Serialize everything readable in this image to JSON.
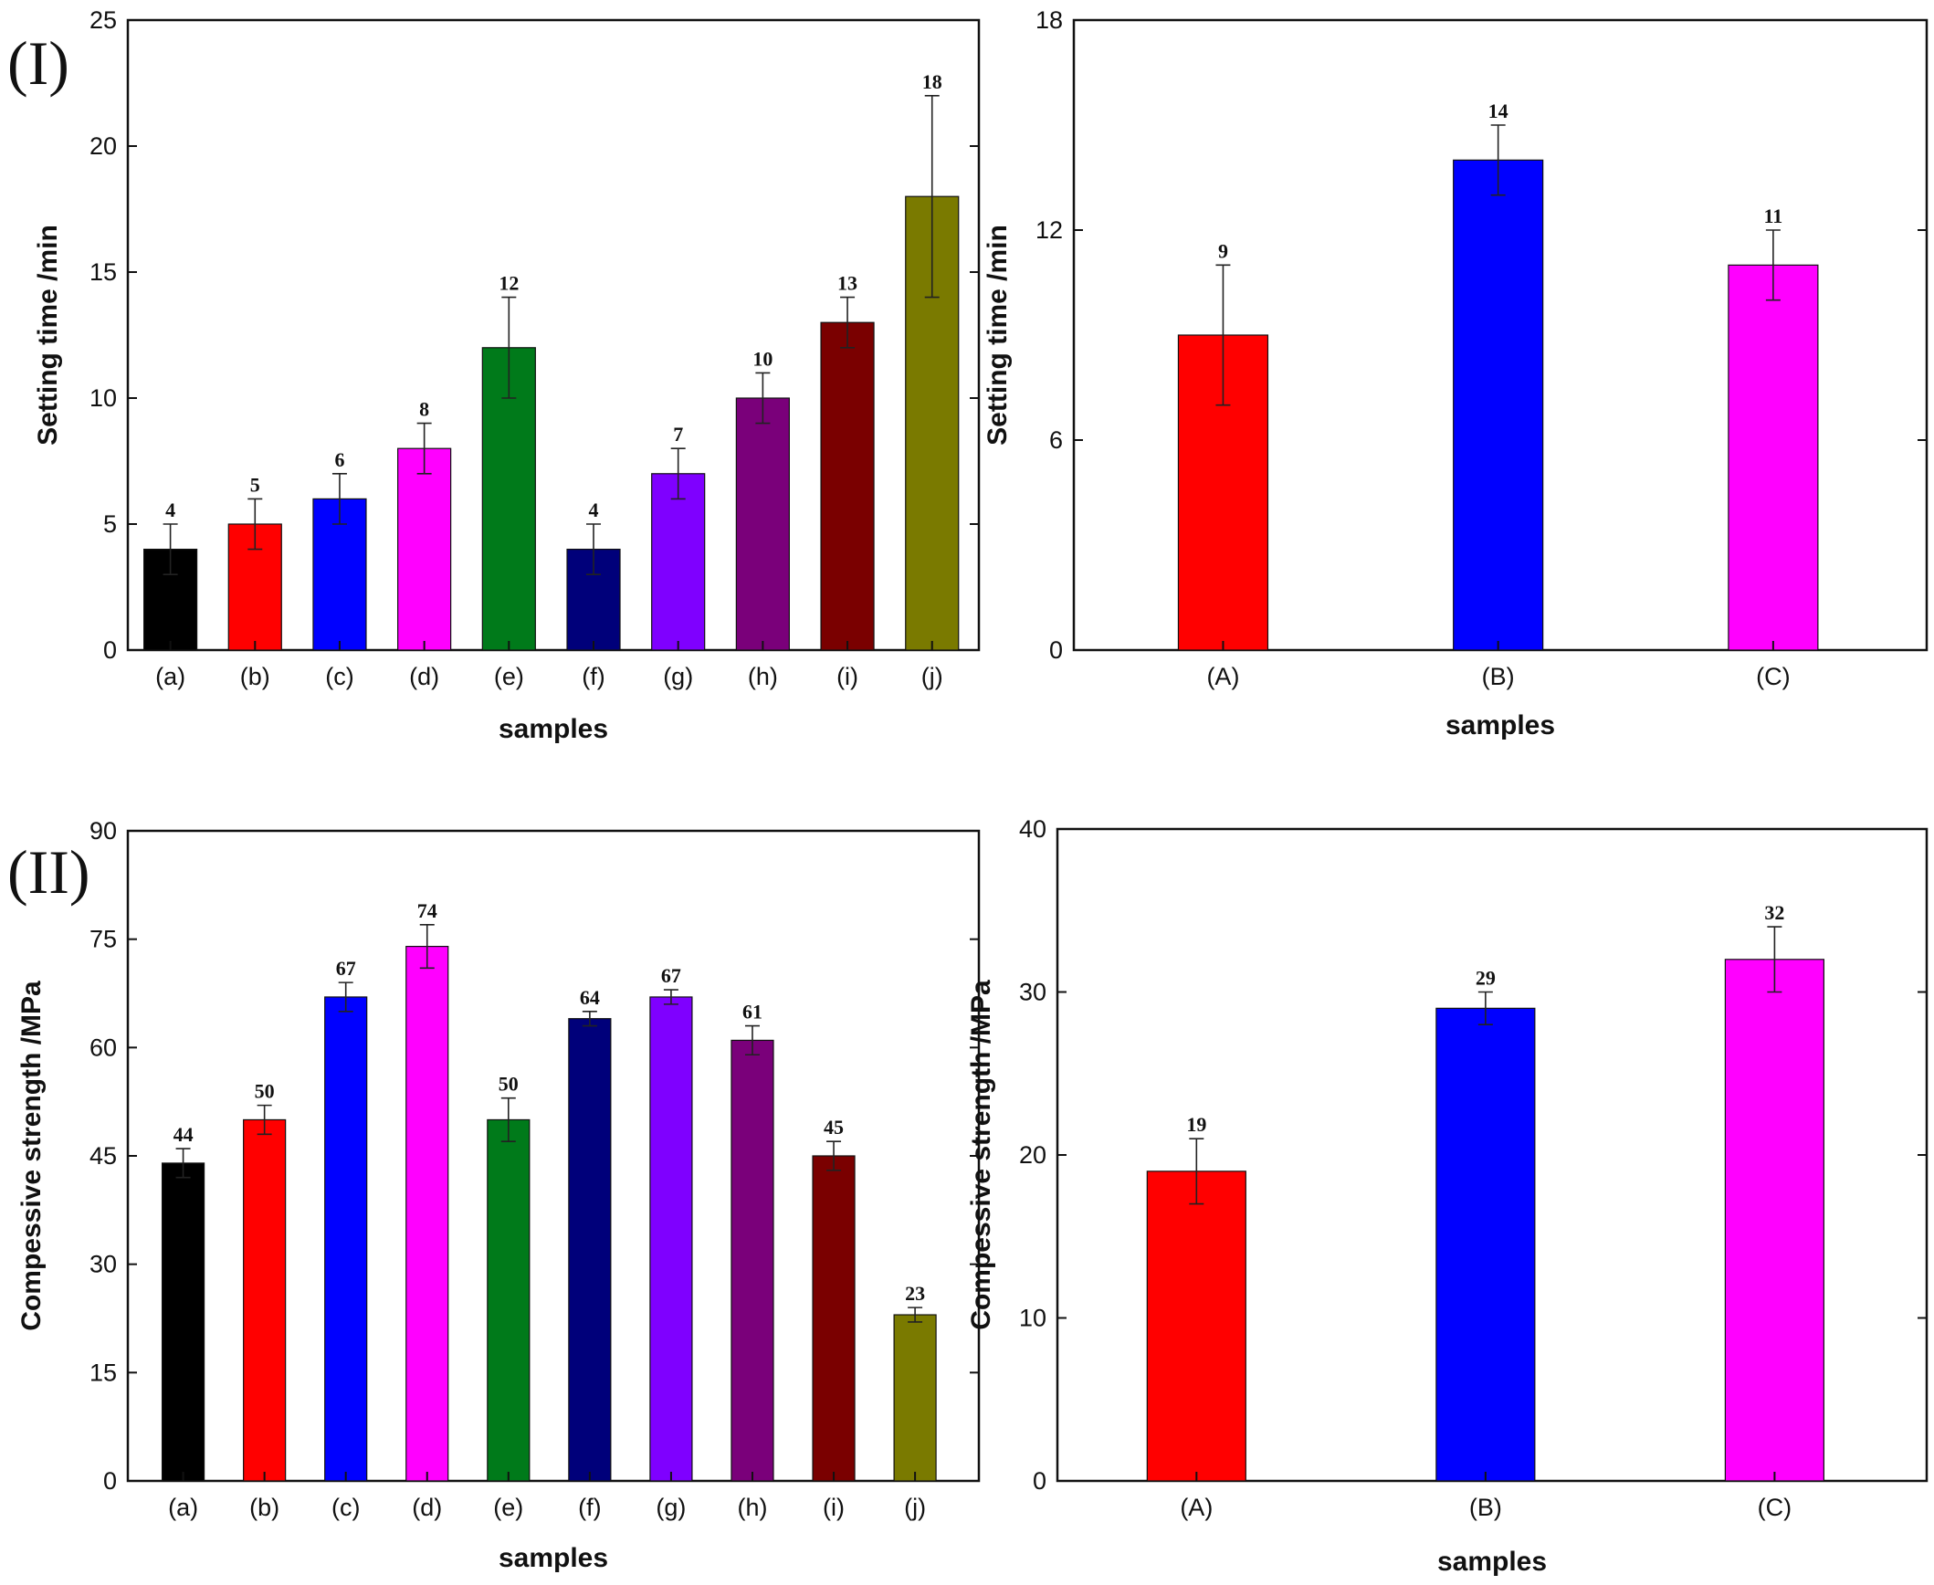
{
  "panel_labels": [
    "(I)",
    "(II)"
  ],
  "bar_colors": [
    "#000000",
    "#ff0000",
    "#0000ff",
    "#ff00ff",
    "#007a1a",
    "#00007a",
    "#7f00ff",
    "#7a007a",
    "#7a0000",
    "#7a7a00"
  ],
  "chart_data": [
    {
      "type": "bar",
      "title": "",
      "xlabel": "samples",
      "ylabel": "Setting time /min",
      "ylim": [
        0,
        25
      ],
      "yticks": [
        0,
        5,
        10,
        15,
        20,
        25
      ],
      "categories": [
        "(a)",
        "(b)",
        "(c)",
        "(d)",
        "(e)",
        "(f)",
        "(g)",
        "(h)",
        "(i)",
        "(j)"
      ],
      "values": [
        4,
        5,
        6,
        8,
        12,
        4,
        7,
        10,
        13,
        18
      ],
      "errors": [
        1,
        1,
        1,
        1,
        2,
        1,
        1,
        1,
        1,
        4
      ],
      "colors": [
        "#000000",
        "#ff0000",
        "#0000ff",
        "#ff00ff",
        "#007a1a",
        "#00007a",
        "#7f00ff",
        "#7a007a",
        "#7a0000",
        "#7a7a00"
      ],
      "value_labels": [
        "4",
        "5",
        "6",
        "8",
        "12",
        "4",
        "7",
        "10",
        "13",
        "18"
      ],
      "grid": false
    },
    {
      "type": "bar",
      "title": "",
      "xlabel": "samples",
      "ylabel": "Setting time /min",
      "ylim": [
        0,
        18
      ],
      "yticks": [
        0,
        6,
        12,
        18
      ],
      "categories": [
        "(A)",
        "(B)",
        "(C)"
      ],
      "values": [
        9,
        14,
        11
      ],
      "errors": [
        2,
        1,
        1
      ],
      "colors": [
        "#ff0000",
        "#0000ff",
        "#ff00ff"
      ],
      "value_labels": [
        "9",
        "14",
        "11"
      ],
      "grid": false
    },
    {
      "type": "bar",
      "title": "",
      "xlabel": "samples",
      "ylabel": "Compessive strength /MPa",
      "ylim": [
        0,
        90
      ],
      "yticks": [
        0,
        15,
        30,
        45,
        60,
        75,
        90
      ],
      "categories": [
        "(a)",
        "(b)",
        "(c)",
        "(d)",
        "(e)",
        "(f)",
        "(g)",
        "(h)",
        "(i)",
        "(j)"
      ],
      "values": [
        44,
        50,
        67,
        74,
        50,
        64,
        67,
        61,
        45,
        23
      ],
      "errors": [
        2,
        2,
        2,
        3,
        3,
        1,
        1,
        2,
        2,
        1
      ],
      "colors": [
        "#000000",
        "#ff0000",
        "#0000ff",
        "#ff00ff",
        "#007a1a",
        "#00007a",
        "#7f00ff",
        "#7a007a",
        "#7a0000",
        "#7a7a00"
      ],
      "value_labels": [
        "44",
        "50",
        "67",
        "74",
        "50",
        "64",
        "67",
        "61",
        "45",
        "23"
      ],
      "grid": false
    },
    {
      "type": "bar",
      "title": "",
      "xlabel": "samples",
      "ylabel": "Compessive strength /MPa",
      "ylim": [
        0,
        40
      ],
      "yticks": [
        0,
        10,
        20,
        30,
        40
      ],
      "categories": [
        "(A)",
        "(B)",
        "(C)"
      ],
      "values": [
        19,
        29,
        32
      ],
      "errors": [
        2,
        1,
        2
      ],
      "colors": [
        "#ff0000",
        "#0000ff",
        "#ff00ff"
      ],
      "value_labels": [
        "19",
        "29",
        "32"
      ],
      "grid": false
    }
  ]
}
